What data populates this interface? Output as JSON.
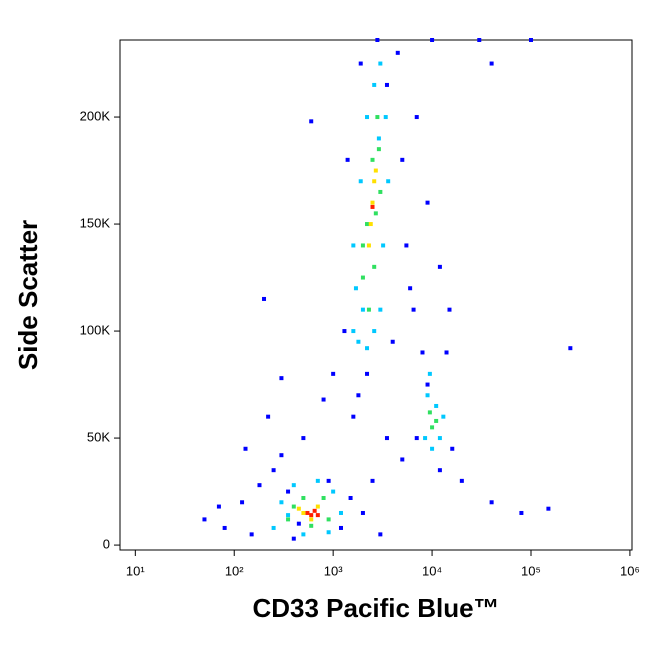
{
  "chart_data": {
    "type": "scatter",
    "x_label": "CD33 Pacific Blue™",
    "y_label": "Side Scatter",
    "xscale": "log",
    "xlim": [
      7,
      1050000
    ],
    "xticks": [
      {
        "value": 10,
        "label": "10¹"
      },
      {
        "value": 100,
        "label": "10²"
      },
      {
        "value": 1000,
        "label": "10³"
      },
      {
        "value": 10000,
        "label": "10⁴"
      },
      {
        "value": 100000,
        "label": "10⁵"
      },
      {
        "value": 1000000,
        "label": "10⁶"
      }
    ],
    "ylim": [
      -2300,
      236000
    ],
    "yticks": [
      0,
      {
        "value": 50000,
        "label": "50K"
      },
      {
        "value": 100000,
        "label": "100K"
      },
      {
        "value": 150000,
        "label": "150K"
      },
      {
        "value": 200000,
        "label": "200K"
      }
    ],
    "grid": false,
    "series": [
      {
        "color": "#0000ff",
        "x": [
          50,
          80,
          120,
          150,
          180,
          250,
          300,
          350,
          400,
          900,
          1200,
          1500,
          2000,
          2500,
          3000,
          70,
          130,
          220,
          500,
          800,
          1000,
          1800,
          3500,
          5000,
          6000,
          5000,
          7000,
          9000,
          12000,
          15000,
          20000,
          40000,
          80000,
          150000,
          250000,
          40000,
          600,
          200,
          300,
          1300,
          1400,
          2800,
          4500,
          8000,
          14000,
          7000,
          16000,
          12000,
          9000,
          1600,
          2200,
          4000,
          5500,
          6500,
          3500,
          1900,
          10000,
          30000,
          100000,
          450
        ],
        "values": [
          12000,
          8000,
          20000,
          5000,
          28000,
          35000,
          42000,
          25000,
          3000,
          30000,
          8000,
          22000,
          15000,
          30000,
          5000,
          18000,
          45000,
          60000,
          50000,
          68000,
          80000,
          70000,
          50000,
          40000,
          120000,
          180000,
          200000,
          160000,
          130000,
          110000,
          30000,
          20000,
          15000,
          17000,
          92000,
          225000,
          198000,
          115000,
          78000,
          100000,
          180000,
          236000,
          230000,
          90000,
          90000,
          50000,
          45000,
          35000,
          75000,
          60000,
          80000,
          95000,
          140000,
          110000,
          215000,
          225000,
          236000,
          236000,
          236000,
          10000
        ]
      },
      {
        "color": "#00c8ff",
        "x": [
          1600,
          1800,
          2200,
          1700,
          1600,
          1900,
          2200,
          2600,
          3000,
          3400,
          3600,
          3200,
          3000,
          2600,
          2000,
          2900,
          250,
          300,
          400,
          700,
          1000,
          1200,
          900,
          500,
          350,
          8500,
          9000,
          11000,
          12000,
          10000,
          9500,
          13000
        ],
        "values": [
          100000,
          95000,
          92000,
          120000,
          140000,
          170000,
          200000,
          215000,
          225000,
          200000,
          170000,
          140000,
          110000,
          100000,
          110000,
          190000,
          8000,
          20000,
          28000,
          30000,
          25000,
          15000,
          6000,
          5000,
          14000,
          50000,
          70000,
          65000,
          50000,
          45000,
          80000,
          60000
        ]
      },
      {
        "color": "#30e060",
        "x": [
          2000,
          2200,
          2500,
          2800,
          3000,
          2600,
          2300,
          2700,
          2000,
          2900,
          400,
          500,
          800,
          900,
          600,
          350,
          10000,
          9500,
          11000
        ],
        "values": [
          125000,
          150000,
          180000,
          200000,
          165000,
          130000,
          110000,
          155000,
          140000,
          185000,
          18000,
          22000,
          22000,
          12000,
          9000,
          12000,
          55000,
          62000,
          58000
        ]
      },
      {
        "color": "#ffe000",
        "x": [
          2300,
          2500,
          2600,
          2400,
          2700,
          500,
          700,
          600,
          450
        ],
        "values": [
          140000,
          160000,
          170000,
          150000,
          175000,
          15000,
          18000,
          12000,
          17000
        ]
      },
      {
        "color": "#ff2000",
        "x": [
          550,
          650,
          600,
          700,
          2500
        ],
        "values": [
          15000,
          16000,
          14000,
          14000,
          158000
        ]
      }
    ]
  }
}
